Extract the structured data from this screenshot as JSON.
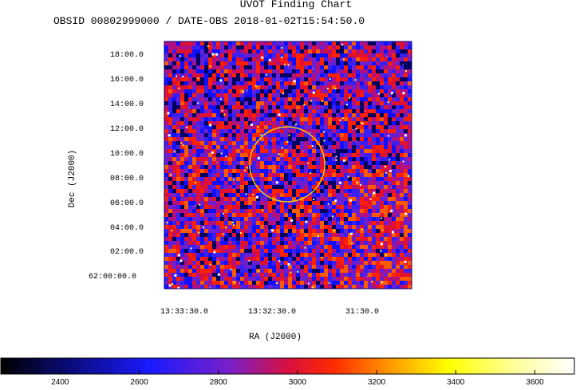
{
  "chart_data": {
    "type": "heatmap",
    "title": "UVOT Finding Chart",
    "subtitle": "OBSID 00802999000 / DATE-OBS 2018-01-02T15:54:50.0",
    "xlabel": "RA (J2000)",
    "ylabel": "Dec (J2000)",
    "x_ticks": [
      "13:33:30.0",
      "13:32:30.0",
      "31:30.0"
    ],
    "y_ticks": [
      "18:00.0",
      "16:00.0",
      "14:00.0",
      "12:00.0",
      "10:00.0",
      "08:00.0",
      "06:00.0",
      "04:00.0",
      "02:00.0",
      "62:00:00.0"
    ],
    "colorbar": {
      "range": [
        2250,
        3700
      ],
      "ticks": [
        2400,
        2600,
        2800,
        3000,
        3200,
        3400,
        3600
      ],
      "colors": [
        "#000000",
        "#0000ff",
        "#ff0000",
        "#ffff00",
        "#ffffff"
      ]
    },
    "source_marker": {
      "shape": "circle",
      "color": "#ffcc00"
    },
    "grid": false
  }
}
